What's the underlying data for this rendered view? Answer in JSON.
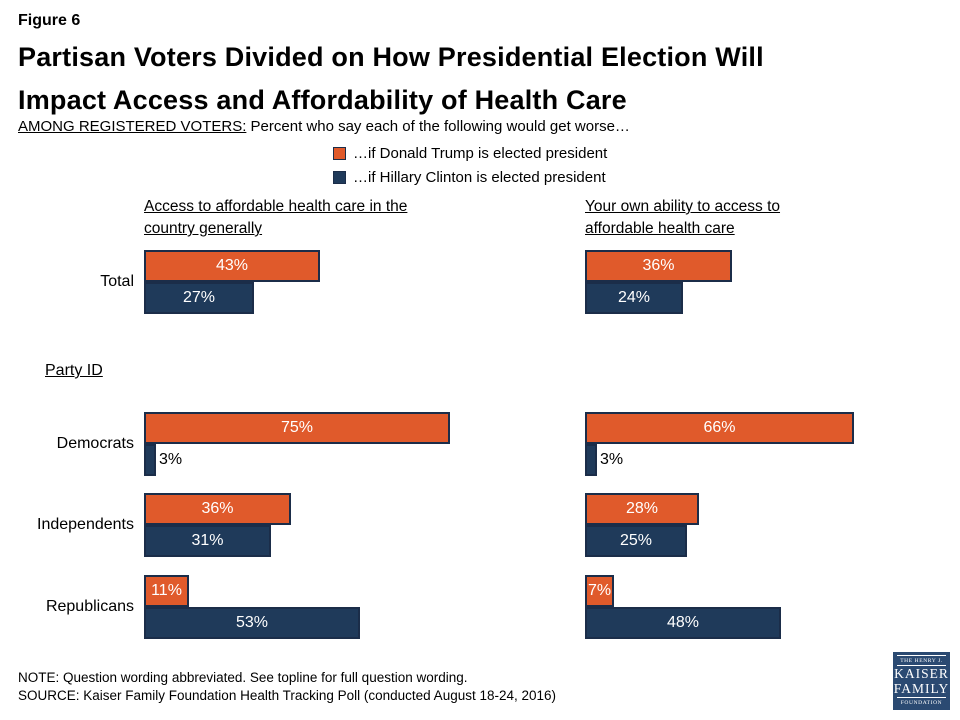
{
  "figure_label": "Figure 6",
  "title_line1": "Partisan Voters Divided on How Presidential Election Will",
  "title_line2": "Impact Access and Affordability of Health Care",
  "subtitle_prefix": "AMONG REGISTERED VOTERS:",
  "subtitle_rest": " Percent who say each of the following would get worse…",
  "legend": [
    {
      "label": "…if Donald Trump is elected president",
      "color": "#E05A2B",
      "swatch": "orange-square"
    },
    {
      "label": "…if Hillary Clinton is elected president",
      "color": "#1F3A5A",
      "swatch": "navy-square"
    }
  ],
  "party_id_label": "Party ID",
  "colors": {
    "trump_orange": "#E05A2B",
    "clinton_navy": "#1F3A5A",
    "bar_border": "#1B2D49",
    "logo_blue": "#2B4A72"
  },
  "chart_data": [
    {
      "type": "bar",
      "orientation": "horizontal",
      "title": "Access to affordable health care in the country generally",
      "categories": [
        "Total",
        "Democrats",
        "Independents",
        "Republicans"
      ],
      "series": [
        {
          "name": "…if Donald Trump is elected president",
          "color": "#E05A2B",
          "values": [
            43,
            75,
            36,
            11
          ]
        },
        {
          "name": "…if Hillary Clinton is elected president",
          "color": "#1F3A5A",
          "values": [
            27,
            3,
            31,
            53
          ]
        }
      ],
      "xlim": [
        0,
        100
      ],
      "value_label_format": "percent",
      "grid": false,
      "legend_position": "top"
    },
    {
      "type": "bar",
      "orientation": "horizontal",
      "title": "Your own ability to access to affordable health care",
      "categories": [
        "Total",
        "Democrats",
        "Independents",
        "Republicans"
      ],
      "series": [
        {
          "name": "…if Donald Trump is elected president",
          "color": "#E05A2B",
          "values": [
            36,
            66,
            28,
            7
          ]
        },
        {
          "name": "…if Hillary Clinton is elected president",
          "color": "#1F3A5A",
          "values": [
            24,
            3,
            25,
            48
          ]
        }
      ],
      "xlim": [
        0,
        100
      ],
      "value_label_format": "percent",
      "grid": false,
      "legend_position": "top"
    }
  ],
  "note": "NOTE: Question wording abbreviated. See topline for full question wording.",
  "source": "SOURCE: Kaiser Family Foundation Health Tracking Poll (conducted August 18-24, 2016)",
  "logo": {
    "line1": "THE HENRY J.",
    "line2": "KAISER",
    "line3": "FAMILY",
    "line4": "FOUNDATION"
  }
}
